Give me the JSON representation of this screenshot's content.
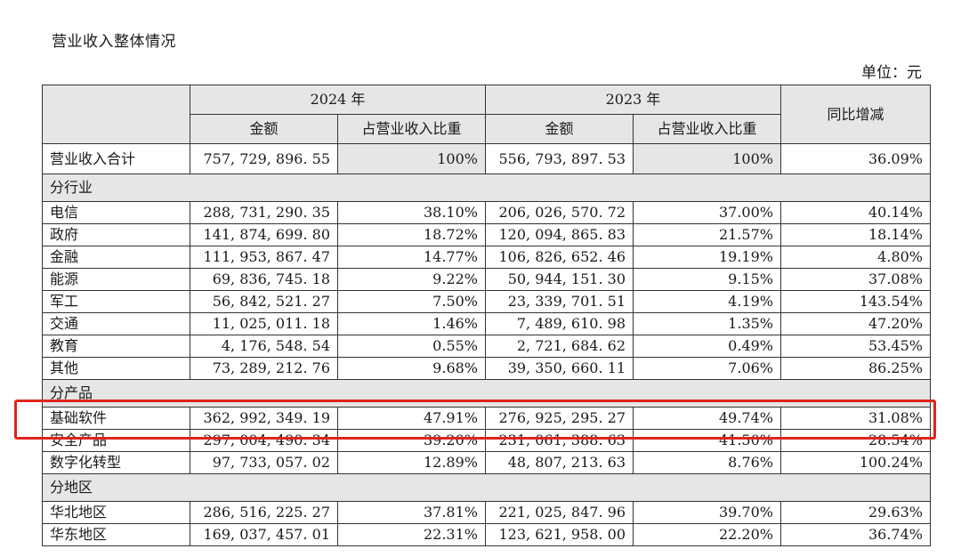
{
  "title": "营业收入整体情况",
  "unit": "单位：元",
  "headers": {
    "year_a": "2024 年",
    "year_b": "2023 年",
    "amount": "金额",
    "share": "占营业收入比重",
    "yoy": "同比增减"
  },
  "total": {
    "label": "营业收入合计",
    "amount_2024": "757, 729, 896. 55",
    "share_2024": "100%",
    "amount_2023": "556, 793, 897. 53",
    "share_2023": "100%",
    "yoy": "36.09%"
  },
  "sections": [
    {
      "label": "分行业",
      "rows": [
        {
          "label": "电信",
          "amount_2024": "288, 731, 290. 35",
          "share_2024": "38.10%",
          "amount_2023": "206, 026, 570. 72",
          "share_2023": "37.00%",
          "yoy": "40.14%"
        },
        {
          "label": "政府",
          "amount_2024": "141, 874, 699. 80",
          "share_2024": "18.72%",
          "amount_2023": "120, 094, 865. 83",
          "share_2023": "21.57%",
          "yoy": "18.14%"
        },
        {
          "label": "金融",
          "amount_2024": "111, 953, 867. 47",
          "share_2024": "14.77%",
          "amount_2023": "106, 826, 652. 46",
          "share_2023": "19.19%",
          "yoy": "4.80%"
        },
        {
          "label": "能源",
          "amount_2024": "69, 836, 745. 18",
          "share_2024": "9.22%",
          "amount_2023": "50, 944, 151. 30",
          "share_2023": "9.15%",
          "yoy": "37.08%"
        },
        {
          "label": "军工",
          "amount_2024": "56, 842, 521. 27",
          "share_2024": "7.50%",
          "amount_2023": "23, 339, 701. 51",
          "share_2023": "4.19%",
          "yoy": "143.54%"
        },
        {
          "label": "交通",
          "amount_2024": "11, 025, 011. 18",
          "share_2024": "1.46%",
          "amount_2023": "7, 489, 610. 98",
          "share_2023": "1.35%",
          "yoy": "47.20%"
        },
        {
          "label": "教育",
          "amount_2024": "4, 176, 548. 54",
          "share_2024": "0.55%",
          "amount_2023": "2, 721, 684. 62",
          "share_2023": "0.49%",
          "yoy": "53.45%"
        },
        {
          "label": "其他",
          "amount_2024": "73, 289, 212. 76",
          "share_2024": "9.68%",
          "amount_2023": "39, 350, 660. 11",
          "share_2023": "7.06%",
          "yoy": "86.25%"
        }
      ]
    },
    {
      "label": "分产品",
      "rows": [
        {
          "label": "基础软件",
          "amount_2024": "362, 992, 349. 19",
          "share_2024": "47.91%",
          "amount_2023": "276, 925, 295. 27",
          "share_2023": "49.74%",
          "yoy": "31.08%"
        },
        {
          "label": "安全产品",
          "amount_2024": "297, 004, 490. 34",
          "share_2024": "39.20%",
          "amount_2023": "231, 061, 388. 63",
          "share_2023": "41.50%",
          "yoy": "28.54%"
        },
        {
          "label": "数字化转型",
          "amount_2024": "97, 733, 057. 02",
          "share_2024": "12.89%",
          "amount_2023": "48, 807, 213. 63",
          "share_2023": "8.76%",
          "yoy": "100.24%"
        }
      ]
    },
    {
      "label": "分地区",
      "rows": [
        {
          "label": "华北地区",
          "amount_2024": "286, 516, 225. 27",
          "share_2024": "37.81%",
          "amount_2023": "221, 025, 847. 96",
          "share_2023": "39.70%",
          "yoy": "29.63%"
        },
        {
          "label": "华东地区",
          "amount_2024": "169, 037, 457. 01",
          "share_2024": "22.31%",
          "amount_2023": "123, 621, 958. 00",
          "share_2023": "22.20%",
          "yoy": "36.74%"
        }
      ]
    }
  ],
  "highlight_color": "#e0241b"
}
